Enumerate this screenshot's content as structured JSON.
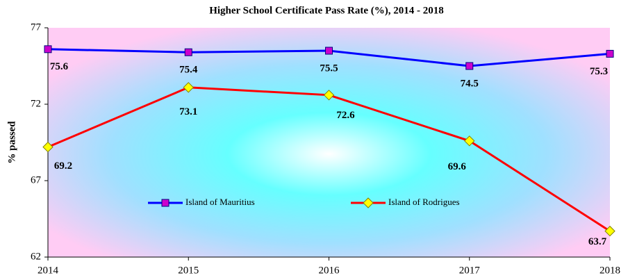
{
  "chart_data": {
    "type": "line",
    "title": "Higher School Certificate Pass Rate (%), 2014 - 2018",
    "y_label": "% passed",
    "categories": [
      "2014",
      "2015",
      "2016",
      "2017",
      "2018"
    ],
    "series": [
      {
        "name": "Island of Mauritius",
        "color": "#0000ff",
        "marker_color": "#cc00cc",
        "marker": "square",
        "values": [
          75.6,
          75.4,
          75.5,
          74.5,
          75.3
        ]
      },
      {
        "name": "Island of Rodrigues",
        "color": "#ff0000",
        "marker_color": "#ffff00",
        "marker": "diamond",
        "values": [
          69.2,
          73.1,
          72.6,
          69.6,
          63.7
        ]
      }
    ],
    "ylim": [
      62,
      77
    ],
    "yticks": [
      62,
      67,
      72,
      77
    ],
    "legend": "center"
  }
}
